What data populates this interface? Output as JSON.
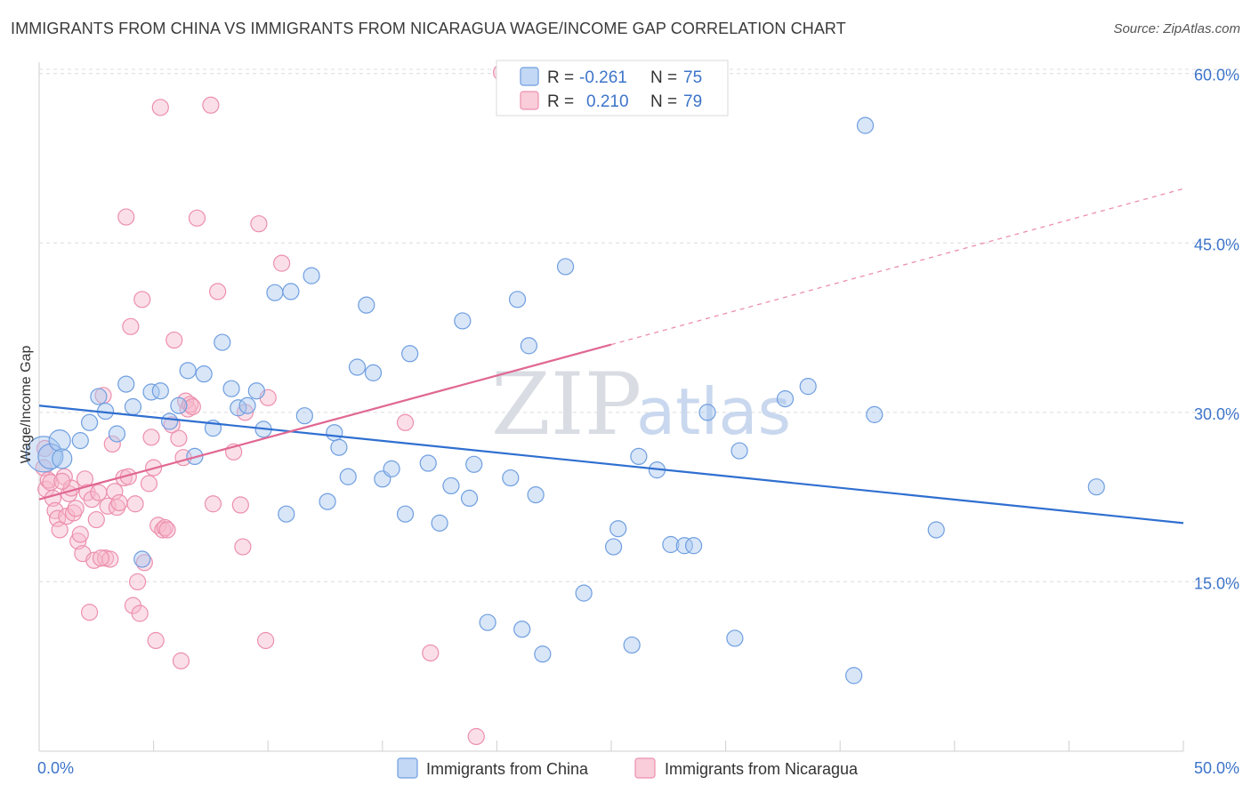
{
  "title": "IMMIGRANTS FROM CHINA VS IMMIGRANTS FROM NICARAGUA WAGE/INCOME GAP CORRELATION CHART",
  "source": "Source: ZipAtlas.com",
  "watermark": {
    "zip": "ZIP",
    "atlas": "atlas"
  },
  "colors": {
    "china": "#a9c8f0",
    "china_stroke": "#6f9ee0",
    "china_line": "#2f6fd0",
    "nicaragua": "#f6b8cb",
    "nicaragua_stroke": "#ec8fad",
    "nicaragua_line": "#e06893",
    "tick_text": "#3d74c9",
    "grid": "#dcdcdc"
  },
  "legend": {
    "rows": [
      {
        "r_label": "R =",
        "r_value": "-0.261",
        "n_label": "N =",
        "n_value": "75"
      },
      {
        "r_label": "R =",
        "r_value": "0.210",
        "n_label": "N =",
        "n_value": "79"
      }
    ]
  },
  "chart_data": {
    "type": "scatter",
    "title": "IMMIGRANTS FROM CHINA VS IMMIGRANTS FROM NICARAGUA WAGE/INCOME GAP CORRELATION CHART",
    "xlabel": "",
    "ylabel": "Wage/Income Gap",
    "xlim": [
      0,
      50
    ],
    "ylim": [
      0,
      61
    ],
    "x_tick_labels": [
      "0.0%",
      "50.0%"
    ],
    "y_ticks": [
      15,
      30,
      45,
      60
    ],
    "y_tick_labels": [
      "15.0%",
      "30.0%",
      "45.0%",
      "60.0%"
    ],
    "series": [
      {
        "name": "Immigrants from China",
        "trend": {
          "x0": 0,
          "y0": 30.6,
          "x1": 50,
          "y1": 20.2
        },
        "points": [
          [
            0.2,
            26.3
          ],
          [
            0.5,
            26.1
          ],
          [
            0.9,
            27.5
          ],
          [
            1.0,
            25.9
          ],
          [
            1.8,
            27.5
          ],
          [
            2.2,
            29.1
          ],
          [
            2.6,
            31.4
          ],
          [
            2.9,
            30.1
          ],
          [
            3.4,
            28.1
          ],
          [
            3.8,
            32.5
          ],
          [
            4.1,
            30.5
          ],
          [
            4.5,
            17.0
          ],
          [
            4.9,
            31.8
          ],
          [
            5.3,
            31.9
          ],
          [
            5.7,
            29.2
          ],
          [
            6.1,
            30.6
          ],
          [
            6.5,
            33.7
          ],
          [
            6.8,
            26.1
          ],
          [
            7.2,
            33.4
          ],
          [
            7.6,
            28.6
          ],
          [
            8.0,
            36.2
          ],
          [
            8.4,
            32.1
          ],
          [
            8.7,
            30.4
          ],
          [
            9.1,
            30.6
          ],
          [
            9.5,
            31.9
          ],
          [
            9.8,
            28.5
          ],
          [
            10.3,
            40.6
          ],
          [
            10.8,
            21.0
          ],
          [
            11.0,
            40.7
          ],
          [
            11.6,
            29.7
          ],
          [
            11.9,
            42.1
          ],
          [
            12.6,
            22.1
          ],
          [
            12.9,
            28.2
          ],
          [
            13.1,
            26.9
          ],
          [
            13.5,
            24.3
          ],
          [
            13.9,
            34.0
          ],
          [
            14.3,
            39.5
          ],
          [
            14.6,
            33.5
          ],
          [
            15.0,
            24.1
          ],
          [
            15.4,
            25.0
          ],
          [
            16.0,
            21.0
          ],
          [
            16.2,
            35.2
          ],
          [
            17.0,
            25.5
          ],
          [
            17.5,
            20.2
          ],
          [
            18.0,
            23.5
          ],
          [
            18.5,
            38.1
          ],
          [
            18.8,
            22.4
          ],
          [
            19.0,
            25.4
          ],
          [
            19.6,
            11.4
          ],
          [
            20.6,
            24.2
          ],
          [
            20.9,
            40.0
          ],
          [
            21.1,
            10.8
          ],
          [
            21.4,
            35.9
          ],
          [
            21.7,
            22.7
          ],
          [
            22.0,
            8.6
          ],
          [
            23.0,
            42.9
          ],
          [
            23.8,
            14.0
          ],
          [
            25.1,
            18.1
          ],
          [
            25.3,
            19.7
          ],
          [
            25.9,
            9.4
          ],
          [
            26.2,
            26.1
          ],
          [
            27.0,
            24.9
          ],
          [
            27.6,
            18.3
          ],
          [
            28.2,
            18.2
          ],
          [
            28.6,
            18.2
          ],
          [
            29.2,
            30.0
          ],
          [
            30.4,
            10.0
          ],
          [
            30.6,
            26.6
          ],
          [
            32.6,
            31.2
          ],
          [
            33.6,
            32.3
          ],
          [
            35.6,
            6.7
          ],
          [
            36.1,
            55.4
          ],
          [
            36.5,
            29.8
          ],
          [
            39.2,
            19.6
          ],
          [
            46.2,
            23.4
          ]
        ],
        "sizes": [
          40,
          28,
          24,
          22,
          18,
          18,
          18,
          18,
          18,
          18,
          18,
          18,
          18,
          18,
          18,
          18,
          18,
          18,
          18,
          18,
          18,
          18,
          18,
          18,
          18,
          18,
          18,
          18,
          18,
          18,
          18,
          18,
          18,
          18,
          18,
          18,
          18,
          18,
          18,
          18,
          18,
          18,
          18,
          18,
          18,
          18,
          18,
          18,
          18,
          18,
          18,
          18,
          18,
          18,
          18,
          18,
          18,
          18,
          18,
          18,
          18,
          18,
          18,
          18,
          18,
          18,
          18,
          18,
          18,
          18,
          18,
          18,
          18,
          18,
          18
        ]
      },
      {
        "name": "Immigrants from Nicaragua",
        "trend": {
          "x0": 0,
          "y0": 22.3,
          "x1": 25,
          "y1": 36.0,
          "dash_to_x": 50,
          "dash_to_y": 49.8
        },
        "points": [
          [
            0.2,
            25.1
          ],
          [
            0.3,
            23.2
          ],
          [
            0.4,
            24.0
          ],
          [
            0.5,
            23.8
          ],
          [
            0.6,
            22.4
          ],
          [
            0.7,
            21.3
          ],
          [
            0.8,
            20.6
          ],
          [
            0.9,
            19.6
          ],
          [
            1.1,
            24.3
          ],
          [
            1.2,
            20.8
          ],
          [
            1.3,
            22.8
          ],
          [
            1.4,
            23.3
          ],
          [
            1.5,
            21.1
          ],
          [
            1.6,
            21.5
          ],
          [
            1.7,
            18.6
          ],
          [
            1.8,
            19.2
          ],
          [
            1.9,
            17.5
          ],
          [
            2.0,
            24.1
          ],
          [
            2.1,
            22.9
          ],
          [
            2.2,
            12.3
          ],
          [
            2.3,
            22.3
          ],
          [
            2.4,
            16.9
          ],
          [
            2.5,
            20.5
          ],
          [
            2.6,
            22.9
          ],
          [
            2.8,
            31.5
          ],
          [
            2.9,
            17.1
          ],
          [
            3.0,
            21.7
          ],
          [
            3.1,
            17.0
          ],
          [
            3.2,
            27.2
          ],
          [
            3.3,
            23.0
          ],
          [
            3.4,
            21.6
          ],
          [
            3.5,
            22.0
          ],
          [
            3.7,
            24.2
          ],
          [
            3.8,
            47.3
          ],
          [
            3.9,
            24.3
          ],
          [
            4.0,
            37.6
          ],
          [
            4.1,
            12.9
          ],
          [
            4.2,
            21.9
          ],
          [
            4.3,
            15.0
          ],
          [
            4.4,
            12.2
          ],
          [
            4.5,
            40.0
          ],
          [
            4.6,
            16.7
          ],
          [
            4.8,
            23.7
          ],
          [
            4.9,
            27.8
          ],
          [
            5.0,
            25.1
          ],
          [
            5.1,
            9.8
          ],
          [
            5.2,
            20.0
          ],
          [
            5.3,
            57.0
          ],
          [
            5.4,
            19.6
          ],
          [
            5.5,
            19.8
          ],
          [
            5.6,
            19.6
          ],
          [
            5.8,
            28.9
          ],
          [
            5.9,
            36.4
          ],
          [
            6.1,
            27.7
          ],
          [
            6.2,
            8.0
          ],
          [
            6.3,
            26.0
          ],
          [
            6.4,
            31.0
          ],
          [
            6.5,
            30.3
          ],
          [
            6.6,
            30.7
          ],
          [
            6.9,
            47.2
          ],
          [
            7.5,
            57.2
          ],
          [
            7.6,
            21.9
          ],
          [
            7.8,
            40.7
          ],
          [
            8.5,
            26.5
          ],
          [
            9.0,
            30.0
          ],
          [
            8.9,
            18.1
          ],
          [
            8.8,
            21.8
          ],
          [
            9.6,
            46.7
          ],
          [
            9.9,
            9.8
          ],
          [
            10.0,
            31.3
          ],
          [
            10.6,
            43.2
          ],
          [
            16.0,
            29.1
          ],
          [
            17.1,
            8.7
          ],
          [
            19.1,
            1.3
          ],
          [
            20.2,
            60.1
          ],
          [
            0.25,
            26.8
          ],
          [
            1.0,
            23.9
          ],
          [
            2.7,
            17.1
          ],
          [
            6.7,
            30.5
          ]
        ],
        "sizes": [
          18,
          18,
          18,
          18,
          18,
          18,
          18,
          18,
          18,
          18,
          18,
          18,
          18,
          18,
          18,
          18,
          18,
          18,
          18,
          18,
          18,
          18,
          18,
          18,
          18,
          18,
          18,
          18,
          18,
          18,
          18,
          18,
          18,
          18,
          18,
          18,
          18,
          18,
          18,
          18,
          18,
          18,
          18,
          18,
          18,
          18,
          18,
          18,
          18,
          18,
          18,
          18,
          18,
          18,
          18,
          18,
          18,
          18,
          18,
          18,
          18,
          18,
          18,
          18,
          18,
          18,
          18,
          18,
          18,
          18,
          18,
          18,
          18,
          18,
          18,
          18,
          18,
          18,
          18
        ]
      }
    ],
    "legend": [
      "Immigrants from China",
      "Immigrants from Nicaragua"
    ]
  }
}
